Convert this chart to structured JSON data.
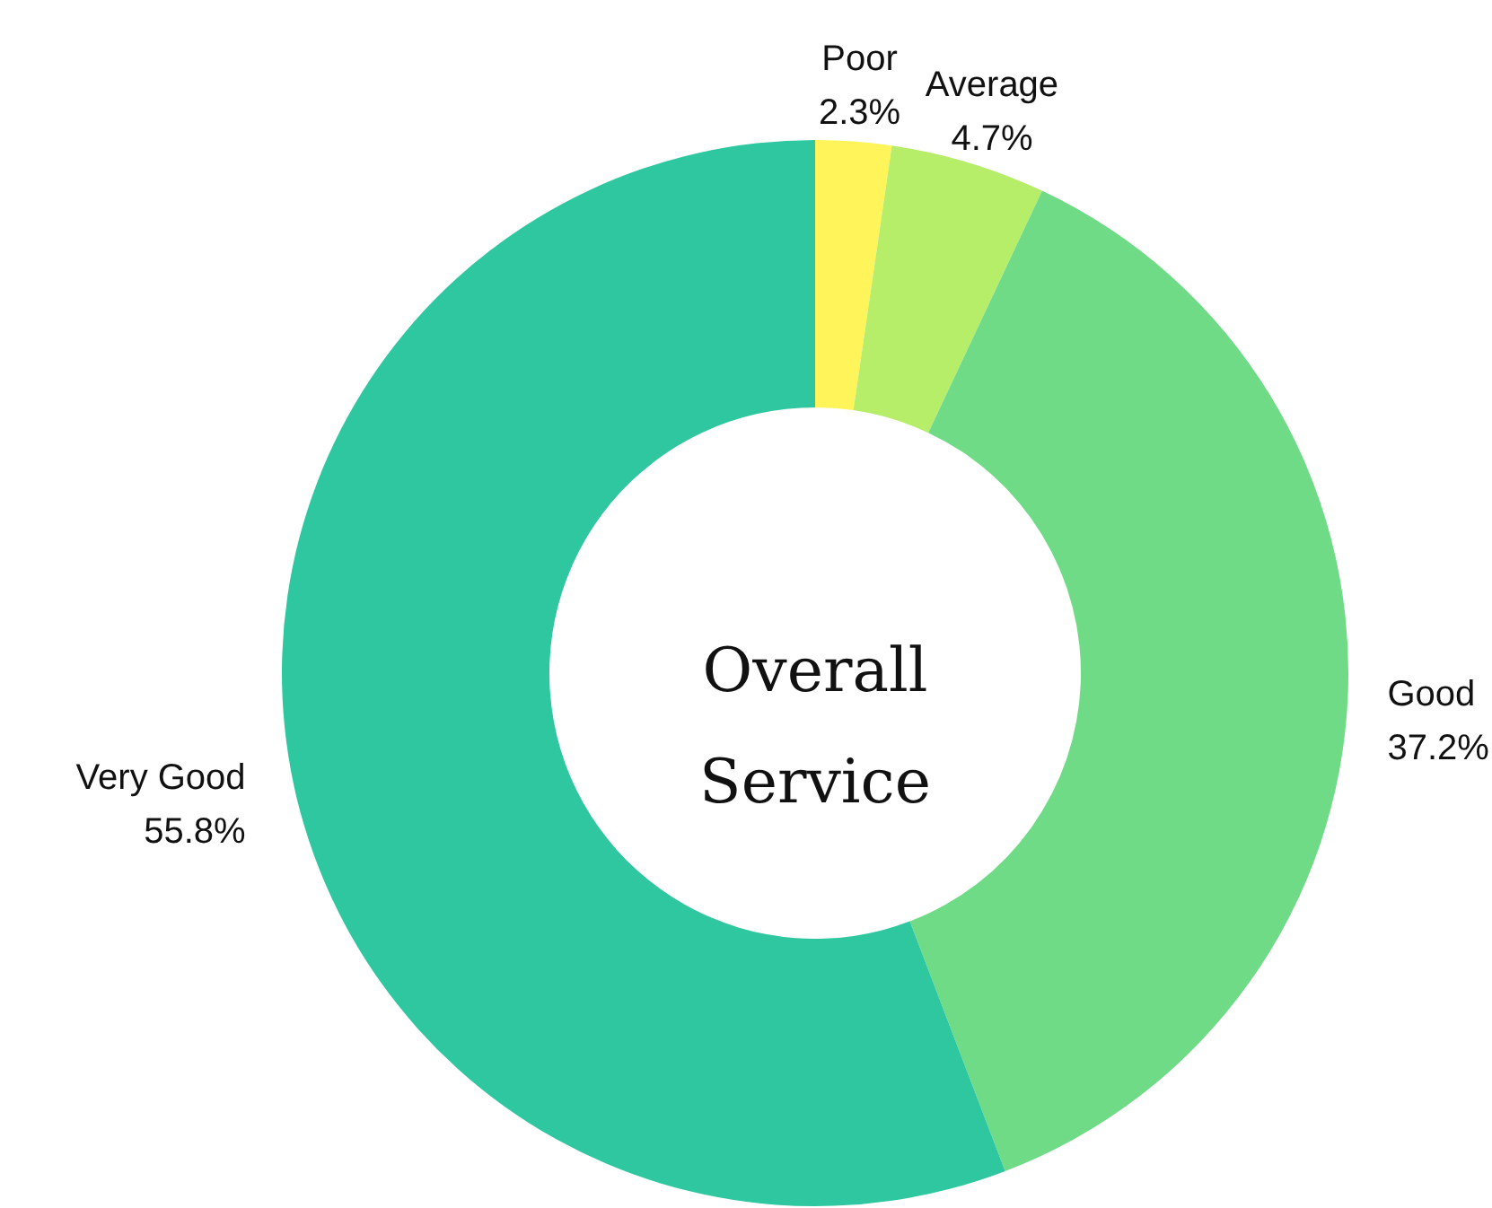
{
  "chart_data": {
    "type": "donut",
    "title": "Overall Service",
    "categories": [
      "Poor",
      "Average",
      "Good",
      "Very Good"
    ],
    "values": [
      2.3,
      4.7,
      37.2,
      55.8
    ],
    "value_labels": [
      "2.3%",
      "4.7%",
      "37.2%",
      "55.8%"
    ],
    "colors": [
      "#fff459",
      "#b6ee6a",
      "#6fdb87",
      "#2ec79f"
    ]
  }
}
